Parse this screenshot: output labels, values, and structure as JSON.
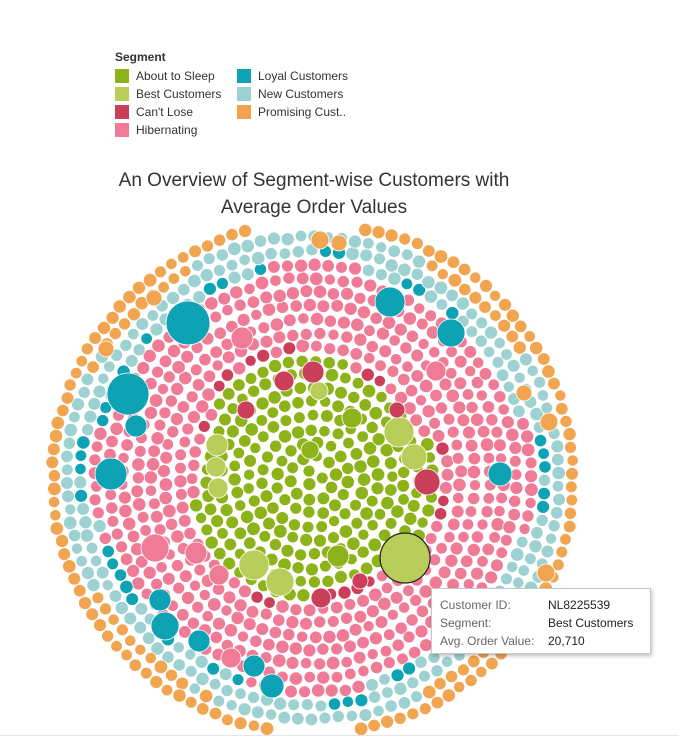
{
  "legend": {
    "title": "Segment",
    "items": [
      {
        "label": "About to Sleep",
        "color": "#8db31a"
      },
      {
        "label": "Loyal Customers",
        "color": "#0da3b5"
      },
      {
        "label": "Best Customers",
        "color": "#b8cd5a"
      },
      {
        "label": "New Customers",
        "color": "#9ed1d1"
      },
      {
        "label": "Can't Lose",
        "color": "#cc3f5b"
      },
      {
        "label": "Promising Cust..",
        "color": "#f2a550"
      },
      {
        "label": "Hibernating",
        "color": "#ef7b96"
      }
    ]
  },
  "chart_data": {
    "type": "packed-bubble",
    "title": "An Overview of Segment-wise Customers with Average Order Values",
    "title_lines": [
      "An Overview of Segment-wise Customers with",
      "Average Order Values"
    ],
    "size_measure": "Avg. Order Value",
    "color_dimension": "Segment",
    "highlighted_customer": {
      "customer_id": "NL8225539",
      "segment": "Best Customers",
      "avg_order_value": 20710
    },
    "approx_customer_counts": {
      "About to Sleep": 170,
      "Best Customers": 13,
      "Can't Lose": 22,
      "Hibernating": 330,
      "Loyal Customers": 35,
      "New Customers": 140,
      "Promising Customers": 120
    }
  },
  "tooltip": {
    "rows": [
      {
        "key": "Customer ID:",
        "value": "NL8225539"
      },
      {
        "key": "Segment:",
        "value": "Best Customers"
      },
      {
        "key": "Avg. Order Value:",
        "value": "20,710"
      }
    ]
  }
}
